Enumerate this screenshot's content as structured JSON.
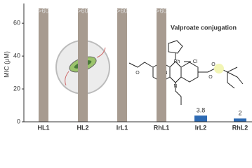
{
  "chart_data": {
    "type": "bar",
    "y_label": "MIC (μM)",
    "annotation": "Valproate conjugation",
    "structure_labels": [
      "Rh",
      "Cl",
      "O",
      "O",
      "O",
      "O",
      "N",
      "N"
    ],
    "categories": [
      "HL1",
      "HL2",
      "IrL1",
      "RhL1",
      "IrL2",
      "RhL2"
    ],
    "values": [
      69,
      69,
      69,
      69,
      3.8,
      2
    ],
    "value_labels": [
      ">60",
      ">60",
      ">60",
      ">60",
      "3.8",
      "2"
    ],
    "colors": [
      "#a79b90",
      "#a79b90",
      "#a79b90",
      "#a79b90",
      "#2d6ab3",
      "#2d6ab3"
    ],
    "ylim": [
      0,
      72
    ],
    "yticks": [
      0,
      20,
      40,
      60
    ]
  }
}
